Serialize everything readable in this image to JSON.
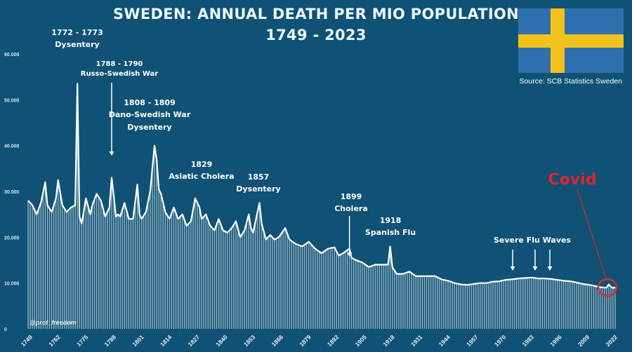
{
  "title": "SWEDEN: ANNUAL DEATH PER MIO POPULATION",
  "subtitle": "1749 - 2023",
  "source": "Source: SCB Statistics Sweden",
  "handle": "@prof_freedom",
  "covid_label": "Covid",
  "colors": {
    "background": "#0f5275",
    "line": "#ffffff",
    "flag_blue": "#2f6fae",
    "flag_yellow": "#f2c21a",
    "covid": "#e0262b"
  },
  "icons": [
    "sweden-flag-icon",
    "arrow-down-icon"
  ],
  "chart_data": {
    "type": "area",
    "title": "SWEDEN: ANNUAL DEATH PER MIO POPULATION",
    "subtitle": "1749 - 2023",
    "ylim": [
      0,
      60000
    ],
    "yticks": [
      "0",
      "10.000",
      "20.000",
      "30.000",
      "40.000",
      "50.000",
      "60.000"
    ],
    "ytick_values": [
      0,
      10000,
      20000,
      30000,
      40000,
      50000,
      60000
    ],
    "xlim": [
      1749,
      2023
    ],
    "xticks": [
      "1749",
      "1762",
      "1775",
      "1788",
      "1801",
      "1814",
      "1827",
      "1840",
      "1853",
      "1866",
      "1879",
      "1892",
      "1905",
      "1918",
      "1931",
      "1944",
      "1957",
      "1970",
      "1983",
      "1996",
      "2009",
      "2022"
    ],
    "xtick_values": [
      1749,
      1762,
      1775,
      1788,
      1801,
      1814,
      1827,
      1840,
      1853,
      1866,
      1879,
      1892,
      1905,
      1918,
      1931,
      1944,
      1957,
      1970,
      1983,
      1996,
      2009,
      2022
    ],
    "grid": false,
    "legend": "none",
    "series": [
      {
        "x": [
          1749,
          1751,
          1753,
          1755,
          1757,
          1758,
          1760,
          1762,
          1763,
          1765,
          1767,
          1769,
          1771,
          1772,
          1773,
          1774,
          1776,
          1778,
          1779,
          1781,
          1783,
          1785,
          1787,
          1788,
          1789,
          1790,
          1791,
          1792,
          1794,
          1796,
          1798,
          1800,
          1801,
          1802,
          1804,
          1806,
          1808,
          1809,
          1810,
          1811,
          1813,
          1815,
          1817,
          1819,
          1821,
          1823,
          1825,
          1827,
          1829,
          1830,
          1832,
          1834,
          1836,
          1838,
          1840,
          1842,
          1844,
          1846,
          1848,
          1850,
          1852,
          1853,
          1854,
          1857,
          1858,
          1860,
          1862,
          1864,
          1866,
          1869,
          1871,
          1874,
          1877,
          1880,
          1883,
          1886,
          1889,
          1892,
          1894,
          1896,
          1899,
          1900,
          1902,
          1905,
          1908,
          1911,
          1914,
          1917,
          1918,
          1919,
          1921,
          1924,
          1927,
          1930,
          1933,
          1936,
          1939,
          1942,
          1945,
          1948,
          1951,
          1954,
          1957,
          1960,
          1963,
          1966,
          1969,
          1972,
          1975,
          1978,
          1981,
          1984,
          1987,
          1990,
          1993,
          1996,
          1999,
          2002,
          2005,
          2008,
          2011,
          2014,
          2016,
          2018,
          2019,
          2020,
          2021,
          2022,
          2023
        ],
        "y": [
          28000,
          27000,
          25000,
          27500,
          32000,
          27000,
          25500,
          28500,
          32500,
          27000,
          25500,
          26500,
          27000,
          53500,
          24500,
          23000,
          28500,
          25000,
          27000,
          29500,
          28000,
          24500,
          26500,
          33000,
          29000,
          24500,
          25000,
          24500,
          27500,
          24000,
          24000,
          31500,
          25000,
          24000,
          25500,
          30000,
          40000,
          37000,
          30500,
          29500,
          25500,
          24000,
          26500,
          24000,
          25000,
          22500,
          23500,
          28500,
          26500,
          24000,
          25000,
          22500,
          21500,
          24000,
          21500,
          21000,
          22000,
          23500,
          20000,
          21500,
          25000,
          22000,
          21000,
          27500,
          23000,
          19500,
          20500,
          19500,
          20000,
          22000,
          19500,
          18500,
          18000,
          19000,
          17500,
          16500,
          17500,
          17800,
          16000,
          16500,
          17500,
          15500,
          15000,
          14500,
          13500,
          14000,
          14000,
          14000,
          18000,
          13500,
          12000,
          12000,
          12500,
          11500,
          11500,
          11500,
          11500,
          10800,
          10500,
          10000,
          9700,
          9600,
          9800,
          10000,
          10000,
          10300,
          10400,
          10700,
          10800,
          11000,
          11100,
          11200,
          11000,
          11000,
          10900,
          10700,
          10500,
          10400,
          10100,
          9800,
          9600,
          9300,
          9100,
          9000,
          9000,
          9700,
          9200,
          8900,
          9100
        ]
      }
    ],
    "annotations": [
      {
        "text": "1772 - 1773",
        "text2": "Dysentery",
        "x": 1772.5
      },
      {
        "text": "1788 - 1790",
        "text2": "Russo-Swedish War",
        "x": 1788
      },
      {
        "text": "1808 - 1809",
        "text2": "Dano-Swedish War",
        "text3": "Dysentery",
        "x": 1808
      },
      {
        "text": "1829",
        "text2": "Asiatic Cholera",
        "x": 1829
      },
      {
        "text": "1857",
        "text2": "Dysentery",
        "x": 1857
      },
      {
        "text": "1899",
        "text2": "Cholera",
        "x": 1899
      },
      {
        "text": "1918",
        "text2": "Spanish Flu",
        "x": 1918
      },
      {
        "text": "Severe Flu Waves",
        "x": 1983
      },
      {
        "text": "Covid",
        "x": 2020
      }
    ]
  }
}
